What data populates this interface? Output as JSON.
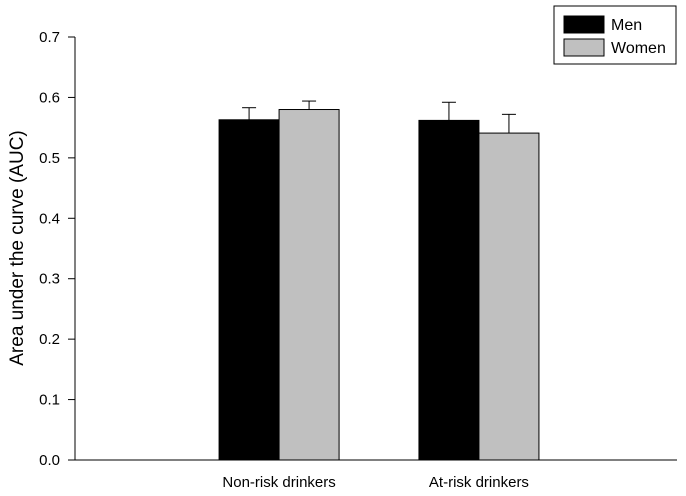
{
  "chart_data": {
    "type": "bar",
    "title": "",
    "xlabel": "",
    "ylabel": "Area under the curve (AUC)",
    "ylim": [
      0,
      0.7
    ],
    "yticks": [
      "0.0",
      "0.1",
      "0.2",
      "0.3",
      "0.4",
      "0.5",
      "0.6",
      "0.7"
    ],
    "categories": [
      "Non-risk drinkers",
      "At-risk drinkers"
    ],
    "series": [
      {
        "name": "Men",
        "color": "#000000",
        "values": [
          0.563,
          0.562
        ],
        "error": [
          0.02,
          0.03
        ]
      },
      {
        "name": "Women",
        "color": "#c0c0c0",
        "values": [
          0.58,
          0.541
        ],
        "error": [
          0.014,
          0.031
        ]
      }
    ],
    "legend_position": "top-right",
    "grid": false
  }
}
